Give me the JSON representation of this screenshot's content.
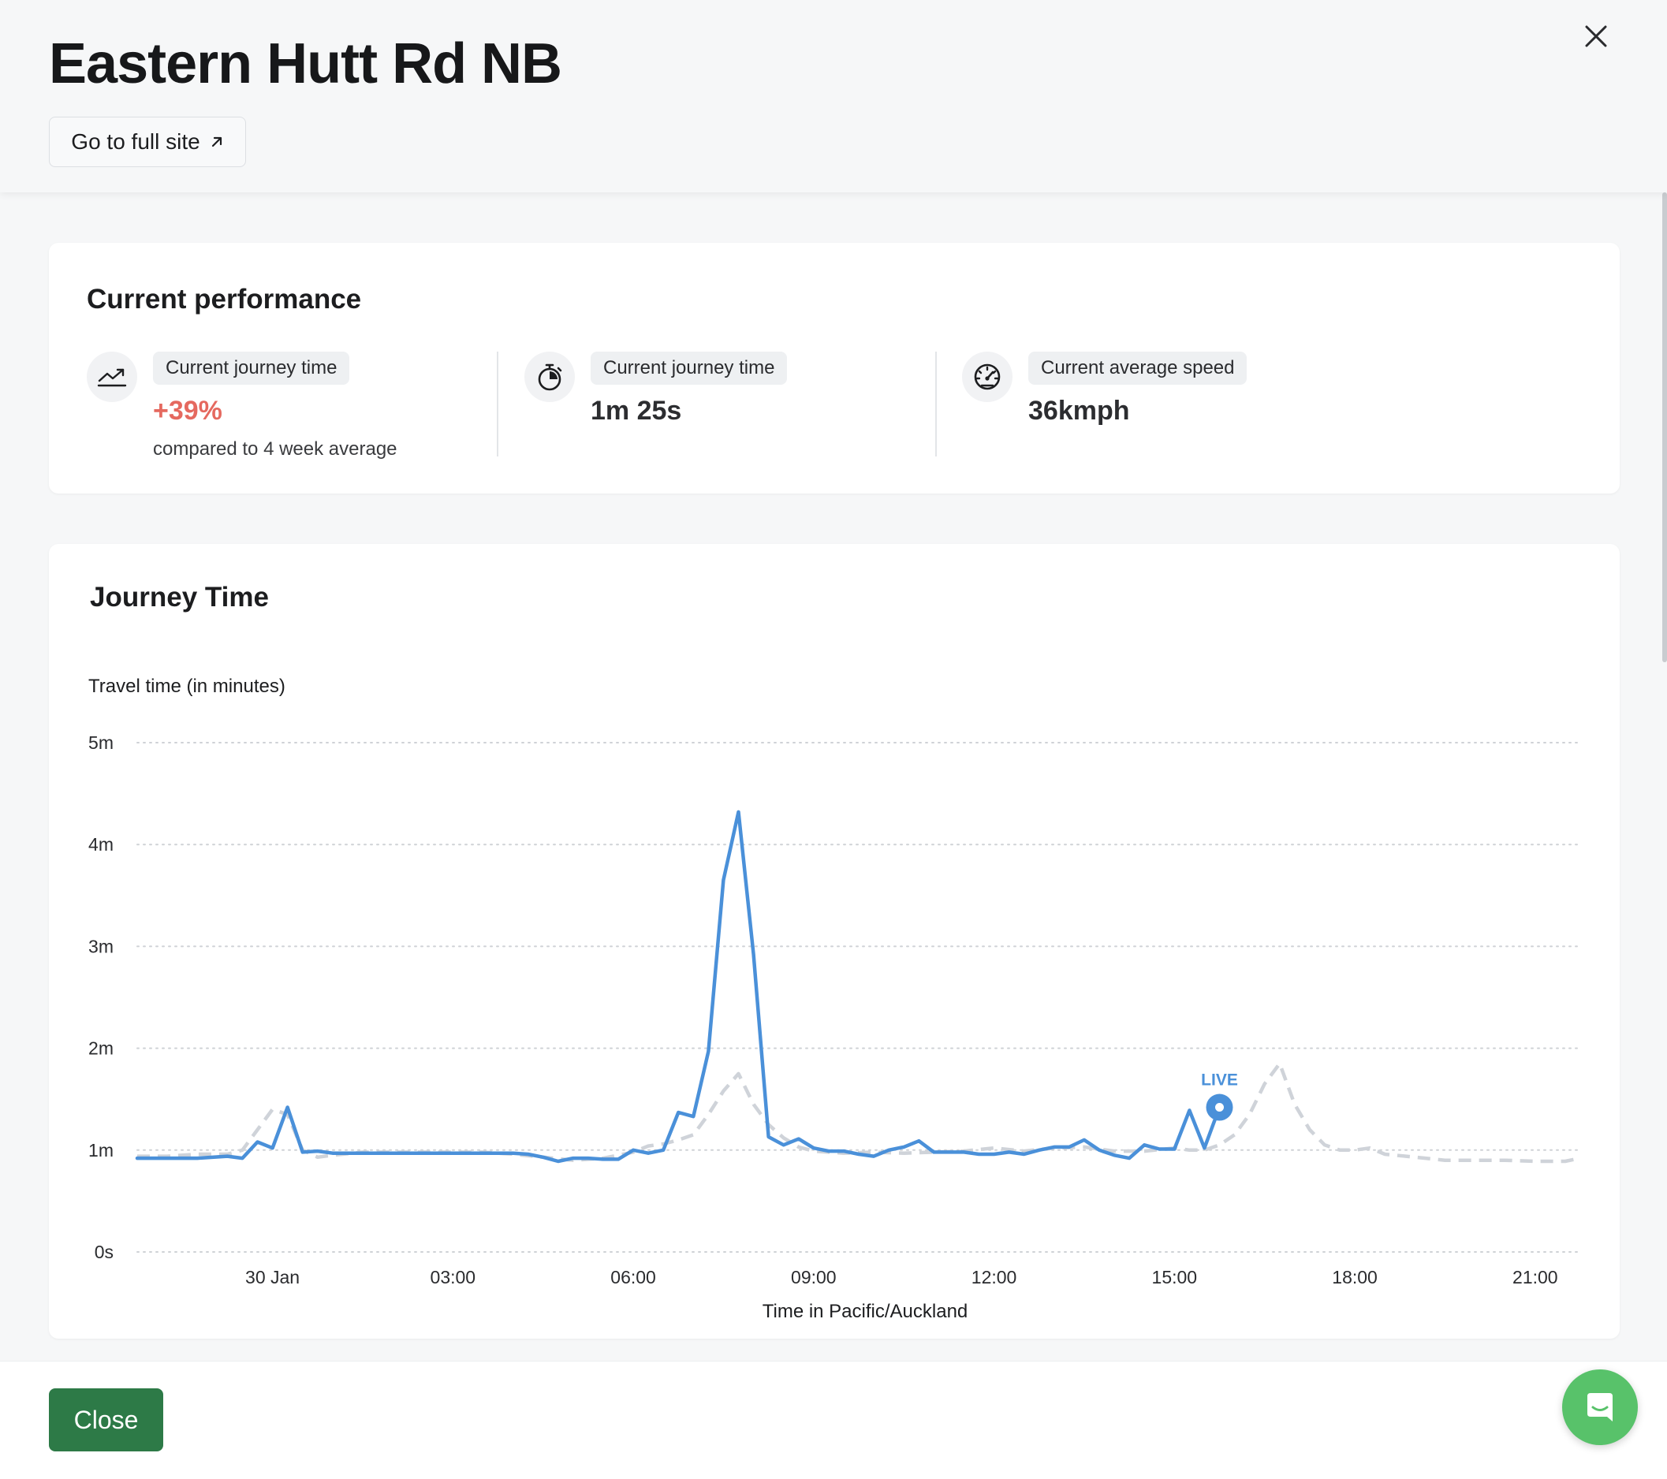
{
  "header": {
    "title": "Eastern Hutt Rd NB",
    "full_site_label": "Go to full site"
  },
  "performance": {
    "title": "Current performance",
    "metrics": [
      {
        "label": "Current journey time",
        "value": "+39%",
        "sub": "compared to 4 week average",
        "icon": "trend-up-icon",
        "value_color": "#e5695f"
      },
      {
        "label": "Current journey time",
        "value": "1m 25s",
        "icon": "stopwatch-icon"
      },
      {
        "label": "Current average speed",
        "value": "36kmph",
        "icon": "speedometer-icon"
      }
    ]
  },
  "journey": {
    "title": "Journey Time"
  },
  "chart_data": {
    "type": "line",
    "title": "Journey Time",
    "ylabel": "Travel time (in minutes)",
    "xlabel": "Time in Pacific/Auckland",
    "y_ticks": [
      "0s",
      "1m",
      "2m",
      "3m",
      "4m",
      "5m"
    ],
    "ylim": [
      0,
      5
    ],
    "x_tick_labels": [
      "30 Jan",
      "03:00",
      "06:00",
      "09:00",
      "12:00",
      "15:00",
      "18:00",
      "21:00"
    ],
    "x_tick_hours": [
      0,
      3,
      6,
      9,
      12,
      15,
      18,
      21
    ],
    "xlim": [
      -2.25,
      21.75
    ],
    "grid": true,
    "live_label": "LIVE",
    "live_hour": 15.75,
    "colors": {
      "current": "#4a90d9",
      "average": "#cfd3d9",
      "grid": "#cfd2d6"
    },
    "series": [
      {
        "style": "solid",
        "x": [
          -2.25,
          -1.75,
          -1.25,
          -0.75,
          -0.5,
          -0.25,
          0.0,
          0.25,
          0.5,
          0.75,
          1.0,
          1.5,
          2.0,
          2.5,
          3.0,
          3.5,
          4.0,
          4.25,
          4.5,
          4.75,
          5.0,
          5.25,
          5.5,
          5.75,
          6.0,
          6.25,
          6.5,
          6.75,
          7.0,
          7.25,
          7.5,
          7.75,
          8.0,
          8.25,
          8.5,
          8.75,
          9.0,
          9.25,
          9.5,
          9.75,
          10.0,
          10.25,
          10.5,
          10.75,
          11.0,
          11.25,
          11.5,
          11.75,
          12.0,
          12.25,
          12.5,
          12.75,
          13.0,
          13.25,
          13.5,
          13.75,
          14.0,
          14.25,
          14.5,
          14.75,
          15.0,
          15.25,
          15.5,
          15.75
        ],
        "y": [
          0.92,
          0.92,
          0.92,
          0.94,
          0.92,
          1.08,
          1.02,
          1.42,
          0.98,
          0.99,
          0.97,
          0.97,
          0.97,
          0.97,
          0.97,
          0.97,
          0.97,
          0.96,
          0.93,
          0.89,
          0.92,
          0.92,
          0.91,
          0.91,
          1.0,
          0.97,
          1.0,
          1.37,
          1.33,
          1.97,
          3.65,
          4.32,
          2.92,
          1.13,
          1.05,
          1.11,
          1.02,
          0.99,
          0.99,
          0.96,
          0.94,
          1.0,
          1.03,
          1.09,
          0.98,
          0.98,
          0.98,
          0.96,
          0.96,
          0.98,
          0.96,
          1.0,
          1.03,
          1.03,
          1.1,
          1.0,
          0.95,
          0.92,
          1.05,
          1.01,
          1.01,
          1.39,
          1.02,
          1.42
        ]
      },
      {
        "style": "dashed",
        "x": [
          -2.25,
          -1.75,
          -1.25,
          -0.75,
          -0.5,
          -0.25,
          0.0,
          0.25,
          0.5,
          0.75,
          1.0,
          1.5,
          2.0,
          2.5,
          3.0,
          3.5,
          4.0,
          4.5,
          5.0,
          5.5,
          6.0,
          6.25,
          6.5,
          6.75,
          7.0,
          7.25,
          7.5,
          7.75,
          8.0,
          8.25,
          8.5,
          8.75,
          9.0,
          9.5,
          10.0,
          10.5,
          11.0,
          11.5,
          12.0,
          12.5,
          13.0,
          13.5,
          14.0,
          14.5,
          15.0,
          15.25,
          15.5,
          15.75,
          16.0,
          16.25,
          16.5,
          16.75,
          17.0,
          17.25,
          17.5,
          17.75,
          18.0,
          18.25,
          18.5,
          19.0,
          19.5,
          20.0,
          20.5,
          21.0,
          21.5,
          21.75
        ],
        "y": [
          0.94,
          0.94,
          0.96,
          0.96,
          1.0,
          1.2,
          1.4,
          1.35,
          1.0,
          0.93,
          0.95,
          0.98,
          0.98,
          0.98,
          0.98,
          0.98,
          0.96,
          0.93,
          0.9,
          0.92,
          0.98,
          1.04,
          1.06,
          1.1,
          1.15,
          1.35,
          1.58,
          1.75,
          1.45,
          1.25,
          1.12,
          1.03,
          0.99,
          0.97,
          0.98,
          0.97,
          0.98,
          0.99,
          1.02,
          0.99,
          1.02,
          1.03,
          0.99,
          0.99,
          1.02,
          1.0,
          1.0,
          1.05,
          1.15,
          1.35,
          1.65,
          1.85,
          1.45,
          1.2,
          1.05,
          1.0,
          1.0,
          1.02,
          0.96,
          0.93,
          0.9,
          0.9,
          0.9,
          0.89,
          0.89,
          0.92
        ]
      }
    ]
  },
  "footer": {
    "close_label": "Close"
  }
}
